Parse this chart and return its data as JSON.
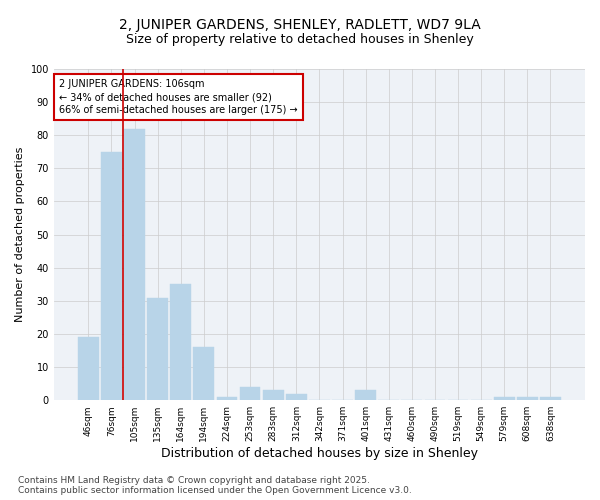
{
  "title": "2, JUNIPER GARDENS, SHENLEY, RADLETT, WD7 9LA",
  "subtitle": "Size of property relative to detached houses in Shenley",
  "xlabel": "Distribution of detached houses by size in Shenley",
  "ylabel": "Number of detached properties",
  "categories": [
    "46sqm",
    "76sqm",
    "105sqm",
    "135sqm",
    "164sqm",
    "194sqm",
    "224sqm",
    "253sqm",
    "283sqm",
    "312sqm",
    "342sqm",
    "371sqm",
    "401sqm",
    "431sqm",
    "460sqm",
    "490sqm",
    "519sqm",
    "549sqm",
    "579sqm",
    "608sqm",
    "638sqm"
  ],
  "values": [
    19,
    75,
    82,
    31,
    35,
    16,
    1,
    4,
    3,
    2,
    0,
    0,
    3,
    0,
    0,
    0,
    0,
    0,
    1,
    1,
    1
  ],
  "bar_color": "#b8d4e8",
  "bar_edge_color": "#b8d4e8",
  "vline_x": 1.5,
  "vline_color": "#cc0000",
  "annotation_box_text": "2 JUNIPER GARDENS: 106sqm\n← 34% of detached houses are smaller (92)\n66% of semi-detached houses are larger (175) →",
  "annotation_box_color": "#cc0000",
  "annotation_text_color": "#000000",
  "ylim": [
    0,
    100
  ],
  "yticks": [
    0,
    10,
    20,
    30,
    40,
    50,
    60,
    70,
    80,
    90,
    100
  ],
  "grid_color": "#cccccc",
  "background_color": "#eef2f7",
  "footer_text": "Contains HM Land Registry data © Crown copyright and database right 2025.\nContains public sector information licensed under the Open Government Licence v3.0.",
  "title_fontsize": 10,
  "subtitle_fontsize": 9,
  "xlabel_fontsize": 9,
  "ylabel_fontsize": 8,
  "tick_fontsize": 6.5,
  "annotation_fontsize": 7,
  "footer_fontsize": 6.5
}
